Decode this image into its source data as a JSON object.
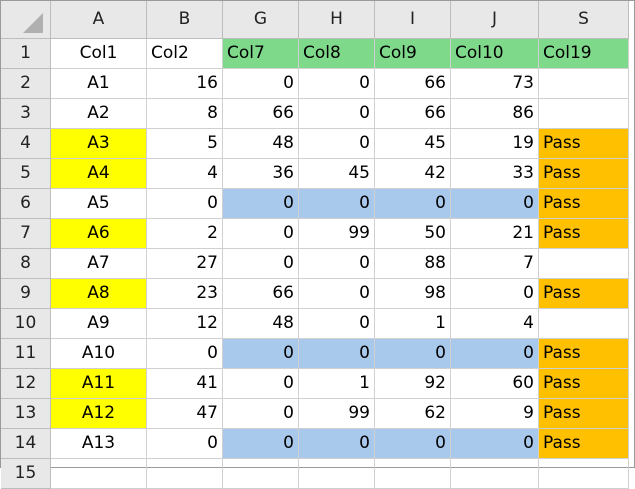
{
  "column_headers": [
    "A",
    "B",
    "G",
    "H",
    "I",
    "J",
    "S"
  ],
  "row_headers": [
    1,
    2,
    3,
    4,
    5,
    6,
    7,
    8,
    9,
    10,
    11,
    12,
    13,
    14,
    15
  ],
  "table": {
    "rows": [
      [
        "Col1",
        "Col2",
        "Col7",
        "Col8",
        "Col9",
        "Col10",
        "Col19"
      ],
      [
        "A1",
        16,
        0,
        0,
        66,
        73,
        null
      ],
      [
        "A2",
        8,
        66,
        0,
        66,
        86,
        null
      ],
      [
        "A3",
        5,
        48,
        0,
        45,
        19,
        "Pass"
      ],
      [
        "A4",
        4,
        36,
        45,
        42,
        33,
        "Pass"
      ],
      [
        "A5",
        0,
        0,
        0,
        0,
        0,
        "Pass"
      ],
      [
        "A6",
        2,
        0,
        99,
        50,
        21,
        "Pass"
      ],
      [
        "A7",
        27,
        0,
        0,
        88,
        7,
        null
      ],
      [
        "A8",
        23,
        66,
        0,
        98,
        0,
        "Pass"
      ],
      [
        "A9",
        12,
        48,
        0,
        1,
        4,
        null
      ],
      [
        "A10",
        0,
        0,
        0,
        0,
        0,
        "Pass"
      ],
      [
        "A11",
        41,
        0,
        1,
        92,
        60,
        "Pass"
      ],
      [
        "A12",
        47,
        0,
        99,
        62,
        9,
        "Pass"
      ],
      [
        "A13",
        0,
        0,
        0,
        0,
        0,
        "Pass"
      ]
    ]
  }
}
